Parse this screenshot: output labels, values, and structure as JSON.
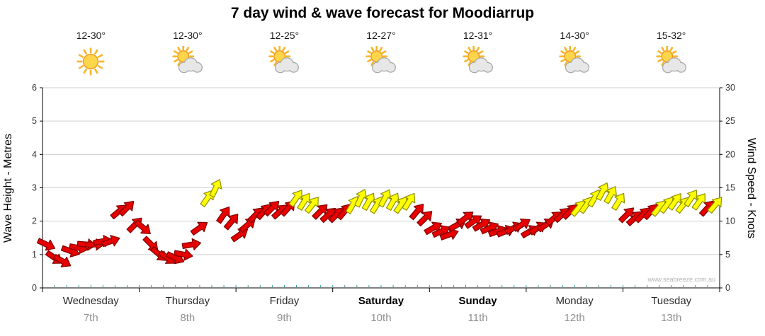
{
  "title": "7 day wind & wave forecast for Moodiarrup",
  "watermark": "www.seabreeze.com.au",
  "days": [
    {
      "name": "Wednesday",
      "date": "7th",
      "temp": "12-30°",
      "icon": "sunny",
      "weekend": false
    },
    {
      "name": "Thursday",
      "date": "8th",
      "temp": "12-30°",
      "icon": "partly-cloudy",
      "weekend": false
    },
    {
      "name": "Friday",
      "date": "9th",
      "temp": "12-25°",
      "icon": "partly-cloudy",
      "weekend": false
    },
    {
      "name": "Saturday",
      "date": "10th",
      "temp": "12-27°",
      "icon": "partly-cloudy",
      "weekend": true
    },
    {
      "name": "Sunday",
      "date": "11th",
      "temp": "12-31°",
      "icon": "partly-cloudy",
      "weekend": true
    },
    {
      "name": "Monday",
      "date": "12th",
      "temp": "14-30°",
      "icon": "partly-cloudy",
      "weekend": false
    },
    {
      "name": "Tuesday",
      "date": "13th",
      "temp": "15-32°",
      "icon": "partly-cloudy",
      "weekend": false
    }
  ],
  "chart_data": {
    "type": "wind-arrows",
    "title": "7 day wind & wave forecast for Moodiarrup",
    "days_span": 7,
    "x_categories": [
      "Wednesday",
      "Thursday",
      "Friday",
      "Saturday",
      "Sunday",
      "Monday",
      "Tuesday"
    ],
    "y_left": {
      "label": "Wave Height - Metres",
      "range": [
        0,
        6
      ],
      "ticks": [
        0,
        1,
        2,
        3,
        4,
        5,
        6
      ]
    },
    "y_right": {
      "label": "Wind Speed - Knots",
      "range": [
        0,
        30
      ],
      "ticks": [
        0,
        5,
        10,
        15,
        20,
        25,
        30
      ]
    },
    "grid": true,
    "colors": {
      "red": "#e60000",
      "red_outline": "#7e0000",
      "yellow": "#ffff00",
      "yellow_outline": "#8f8f00",
      "minor_tick": "#2a9d9d"
    },
    "arrow_fields": [
      "day_fraction_0to7",
      "wind_speed_knots",
      "direction_deg_cw_from_up",
      "color_0red_1yellow"
    ],
    "arrows": [
      [
        0.042,
        6.5,
        115,
        0
      ],
      [
        0.125,
        4.5,
        125,
        0
      ],
      [
        0.208,
        4,
        120,
        0
      ],
      [
        0.292,
        5.5,
        110,
        0
      ],
      [
        0.375,
        6,
        100,
        0
      ],
      [
        0.458,
        6.5,
        95,
        0
      ],
      [
        0.542,
        6.5,
        90,
        0
      ],
      [
        0.625,
        7,
        80,
        0
      ],
      [
        0.708,
        7,
        70,
        0
      ],
      [
        0.792,
        11.5,
        50,
        0
      ],
      [
        0.875,
        12,
        45,
        0
      ],
      [
        0.958,
        9.5,
        45,
        0
      ],
      [
        1.042,
        9,
        130,
        0
      ],
      [
        1.125,
        6.5,
        135,
        0
      ],
      [
        1.208,
        5,
        130,
        0
      ],
      [
        1.292,
        4.5,
        125,
        0
      ],
      [
        1.375,
        4.5,
        115,
        0
      ],
      [
        1.458,
        5,
        100,
        0
      ],
      [
        1.542,
        6.5,
        80,
        0
      ],
      [
        1.625,
        9,
        55,
        0
      ],
      [
        1.708,
        13.5,
        35,
        1
      ],
      [
        1.792,
        15,
        25,
        1
      ],
      [
        1.875,
        11,
        35,
        0
      ],
      [
        1.958,
        10,
        40,
        0
      ],
      [
        2.042,
        8,
        55,
        0
      ],
      [
        2.125,
        9.5,
        50,
        0
      ],
      [
        2.208,
        11,
        45,
        0
      ],
      [
        2.292,
        11.5,
        42,
        0
      ],
      [
        2.375,
        12,
        45,
        0
      ],
      [
        2.458,
        11.5,
        48,
        0
      ],
      [
        2.542,
        12,
        42,
        0
      ],
      [
        2.625,
        13.5,
        35,
        1
      ],
      [
        2.708,
        13,
        32,
        1
      ],
      [
        2.792,
        12.5,
        38,
        1
      ],
      [
        2.875,
        11.5,
        45,
        0
      ],
      [
        2.958,
        11,
        48,
        0
      ],
      [
        3.042,
        11,
        45,
        0
      ],
      [
        3.125,
        11.5,
        40,
        0
      ],
      [
        3.208,
        12.5,
        30,
        1
      ],
      [
        3.292,
        13.5,
        25,
        1
      ],
      [
        3.375,
        13,
        30,
        1
      ],
      [
        3.458,
        12.5,
        32,
        1
      ],
      [
        3.542,
        13.5,
        28,
        1
      ],
      [
        3.625,
        13,
        30,
        1
      ],
      [
        3.708,
        12.5,
        35,
        1
      ],
      [
        3.792,
        13,
        32,
        1
      ],
      [
        3.875,
        11.5,
        40,
        0
      ],
      [
        3.958,
        10.5,
        45,
        0
      ],
      [
        4.042,
        9,
        60,
        0
      ],
      [
        4.125,
        8.5,
        65,
        0
      ],
      [
        4.208,
        8,
        70,
        0
      ],
      [
        4.292,
        9.5,
        60,
        0
      ],
      [
        4.375,
        10.5,
        52,
        0
      ],
      [
        4.458,
        10,
        55,
        0
      ],
      [
        4.542,
        9.5,
        60,
        0
      ],
      [
        4.625,
        9,
        65,
        0
      ],
      [
        4.708,
        8.5,
        70,
        0
      ],
      [
        4.792,
        8.5,
        68,
        0
      ],
      [
        4.875,
        9,
        62,
        0
      ],
      [
        4.958,
        9.5,
        58,
        0
      ],
      [
        5.042,
        8.5,
        60,
        0
      ],
      [
        5.125,
        9,
        58,
        0
      ],
      [
        5.208,
        9.5,
        55,
        0
      ],
      [
        5.292,
        10.5,
        50,
        0
      ],
      [
        5.375,
        11,
        48,
        0
      ],
      [
        5.458,
        11.5,
        45,
        0
      ],
      [
        5.542,
        12,
        40,
        1
      ],
      [
        5.625,
        12.5,
        35,
        1
      ],
      [
        5.708,
        13.5,
        30,
        1
      ],
      [
        5.792,
        14.5,
        28,
        1
      ],
      [
        5.875,
        14,
        30,
        1
      ],
      [
        5.958,
        13,
        32,
        1
      ],
      [
        6.042,
        11,
        45,
        0
      ],
      [
        6.125,
        10.5,
        48,
        0
      ],
      [
        6.208,
        11,
        45,
        0
      ],
      [
        6.292,
        11.5,
        42,
        0
      ],
      [
        6.375,
        12,
        40,
        1
      ],
      [
        6.458,
        12.5,
        38,
        1
      ],
      [
        6.542,
        13,
        35,
        1
      ],
      [
        6.625,
        12.5,
        38,
        1
      ],
      [
        6.708,
        13.5,
        34,
        1
      ],
      [
        6.792,
        13,
        36,
        1
      ],
      [
        6.875,
        12,
        42,
        0
      ],
      [
        6.958,
        12.5,
        40,
        1
      ]
    ]
  }
}
